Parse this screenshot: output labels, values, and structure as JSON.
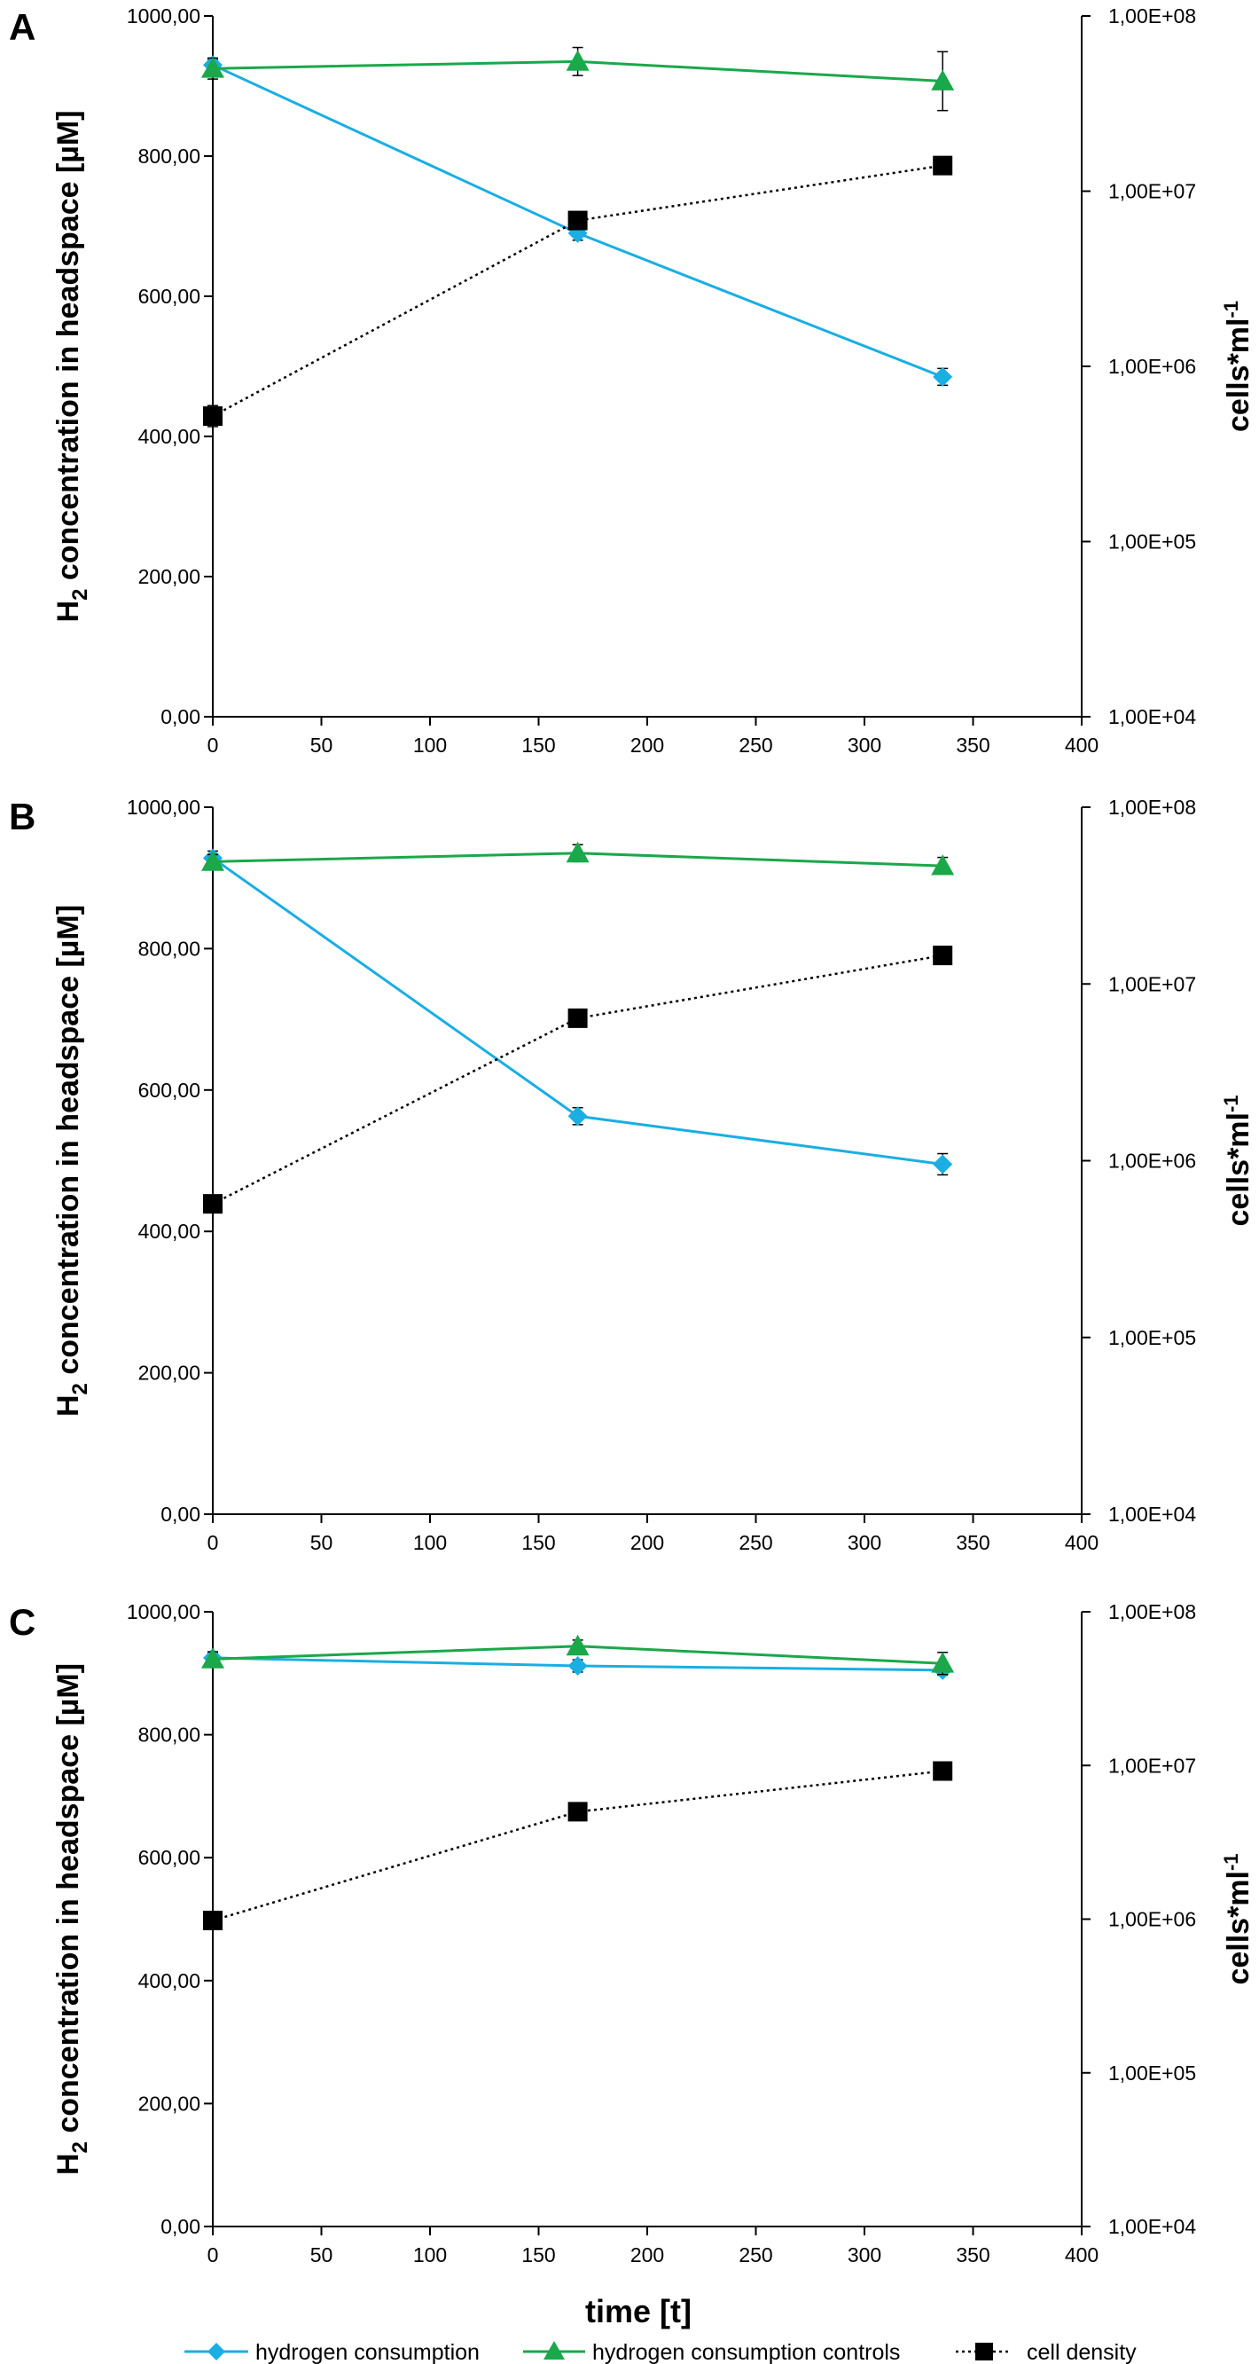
{
  "colors": {
    "hydrogen": "#1aaee3",
    "controls": "#1aa84a",
    "cells": "#000000"
  },
  "x_axis": {
    "label": "time [t]",
    "min": 0,
    "max": 400,
    "ticks": [
      "0",
      "50",
      "100",
      "150",
      "200",
      "250",
      "300",
      "350",
      "400"
    ]
  },
  "legend": {
    "hydrogen": "hydrogen consumption",
    "controls": "hydrogen consumption controls",
    "cells": "cell density"
  },
  "chart_data": [
    {
      "panel": "A",
      "type": "line",
      "ylabel_left": "H2 concentration in headspace [µM]",
      "ylabel_left_main": "H",
      "ylabel_left_sub": "2",
      "ylabel_left_rest": " concentration in headspace [µM]",
      "ylabel_right_main": "cells*ml",
      "ylabel_right_sup": "-1",
      "ylim_left": [
        0,
        1000
      ],
      "ylim_right_log": [
        10000,
        100000000
      ],
      "left_ticks": [
        "0,00",
        "200,00",
        "400,00",
        "600,00",
        "800,00",
        "1000,00"
      ],
      "right_ticks": [
        "1,00E+04",
        "1,00E+05",
        "1,00E+06",
        "1,00E+07",
        "1,00E+08"
      ],
      "x": [
        0,
        168,
        336
      ],
      "series": [
        {
          "name": "hydrogen consumption",
          "key": "hydrogen",
          "axis": "left",
          "values": [
            930,
            690,
            485
          ],
          "err": [
            8,
            10,
            12
          ]
        },
        {
          "name": "hydrogen consumption controls",
          "key": "controls",
          "axis": "left",
          "values": [
            925,
            935,
            907
          ],
          "err": [
            15,
            20,
            42
          ]
        },
        {
          "name": "cell density",
          "key": "cells",
          "axis": "right",
          "values": [
            520000,
            6800000,
            14000000
          ],
          "err": [
            0.06,
            0.03,
            0.03
          ]
        }
      ]
    },
    {
      "panel": "B",
      "type": "line",
      "ylabel_left": "H2 concentration in headspace [µM]",
      "ylabel_left_main": "H",
      "ylabel_left_sub": "2",
      "ylabel_left_rest": " concentration in headspace [µM]",
      "ylabel_right_main": "cells*ml",
      "ylabel_right_sup": "-1",
      "ylim_left": [
        0,
        1000
      ],
      "ylim_right_log": [
        10000,
        100000000
      ],
      "left_ticks": [
        "0,00",
        "200,00",
        "400,00",
        "600,00",
        "800,00",
        "1000,00"
      ],
      "right_ticks": [
        "1,00E+04",
        "1,00E+05",
        "1,00E+06",
        "1,00E+07",
        "1,00E+08"
      ],
      "x": [
        0,
        168,
        336
      ],
      "series": [
        {
          "name": "hydrogen consumption",
          "key": "hydrogen",
          "axis": "left",
          "values": [
            928,
            563,
            495
          ],
          "err": [
            10,
            12,
            15
          ]
        },
        {
          "name": "hydrogen consumption controls",
          "key": "controls",
          "axis": "left",
          "values": [
            923,
            935,
            917
          ],
          "err": [
            10,
            12,
            12
          ]
        },
        {
          "name": "cell density",
          "key": "cells",
          "axis": "right",
          "values": [
            570000,
            6400000,
            14500000
          ],
          "err": [
            0.02,
            0.02,
            0.02
          ]
        }
      ]
    },
    {
      "panel": "C",
      "type": "line",
      "ylabel_left": "H2 concentration in headspace [µM]",
      "ylabel_left_main": "H",
      "ylabel_left_sub": "2",
      "ylabel_left_rest": " concentration in headspace [µM]",
      "ylabel_right_main": "cells*ml",
      "ylabel_right_sup": "-1",
      "ylim_left": [
        0,
        1000
      ],
      "ylim_right_log": [
        10000,
        100000000
      ],
      "left_ticks": [
        "0,00",
        "200,00",
        "400,00",
        "600,00",
        "800,00",
        "1000,00"
      ],
      "right_ticks": [
        "1,00E+04",
        "1,00E+05",
        "1,00E+06",
        "1,00E+07",
        "1,00E+08"
      ],
      "x": [
        0,
        168,
        336
      ],
      "series": [
        {
          "name": "hydrogen consumption",
          "key": "hydrogen",
          "axis": "left",
          "values": [
            925,
            912,
            905
          ],
          "err": [
            8,
            10,
            8
          ]
        },
        {
          "name": "hydrogen consumption controls",
          "key": "controls",
          "axis": "left",
          "values": [
            923,
            944,
            916
          ],
          "err": [
            12,
            10,
            18
          ]
        },
        {
          "name": "cell density",
          "key": "cells",
          "axis": "right",
          "values": [
            980000,
            5000000,
            9200000
          ],
          "err": [
            0.02,
            0.02,
            0.02
          ]
        }
      ]
    }
  ]
}
